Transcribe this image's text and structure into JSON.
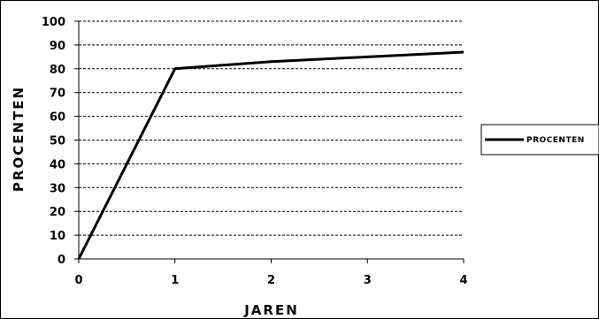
{
  "chart_data": {
    "type": "line",
    "title": "",
    "xlabel": "JAREN",
    "ylabel": "PROCENTEN",
    "x": [
      0,
      1,
      2,
      3,
      4
    ],
    "series": [
      {
        "name": "PROCENTEN",
        "values": [
          0,
          80,
          83,
          85,
          87
        ]
      }
    ],
    "xlim": [
      0,
      4
    ],
    "ylim": [
      0,
      100
    ],
    "xticks": [
      "0",
      "1",
      "2",
      "3",
      "4"
    ],
    "yticks": [
      "0",
      "10",
      "20",
      "30",
      "40",
      "50",
      "60",
      "70",
      "80",
      "90",
      "100"
    ],
    "grid": "horizontal dashed",
    "legend": "right",
    "colors": {
      "line": "#000000",
      "grid": "#000000",
      "axis": "#000000"
    }
  }
}
